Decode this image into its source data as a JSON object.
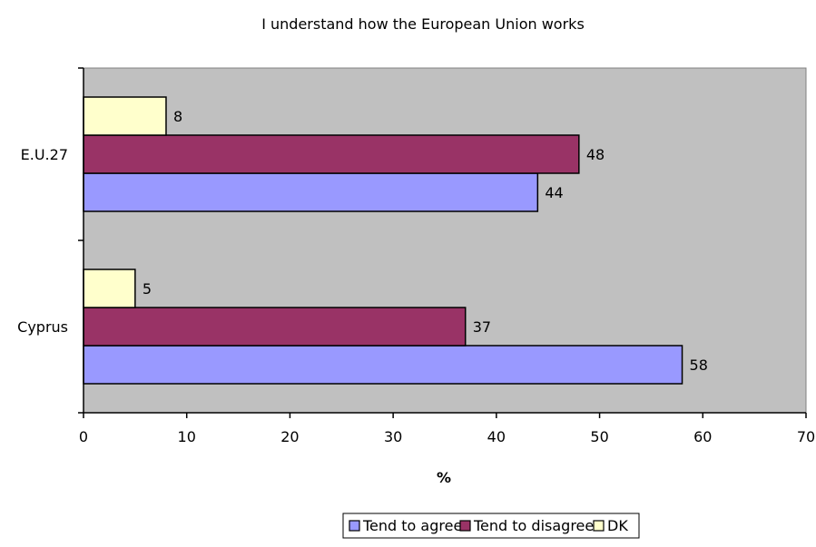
{
  "chart_data": {
    "type": "bar",
    "orientation": "horizontal",
    "title": "I understand how the European Union works",
    "xlabel": "%",
    "ylabel": "",
    "xlim": [
      0,
      70
    ],
    "x_ticks": [
      0,
      10,
      20,
      30,
      40,
      50,
      60,
      70
    ],
    "categories": [
      "Cyprus",
      "E.U.27"
    ],
    "series": [
      {
        "name": "Tend to agree",
        "values": [
          58,
          44
        ],
        "color": "#9999ff"
      },
      {
        "name": "Tend to disagree",
        "values": [
          37,
          48
        ],
        "color": "#993366"
      },
      {
        "name": "DK",
        "values": [
          5,
          8
        ],
        "color": "#ffffcc"
      }
    ],
    "data_labels": true,
    "grid": false,
    "plot_background": "#c0c0c0",
    "legend": "bottom-center"
  }
}
